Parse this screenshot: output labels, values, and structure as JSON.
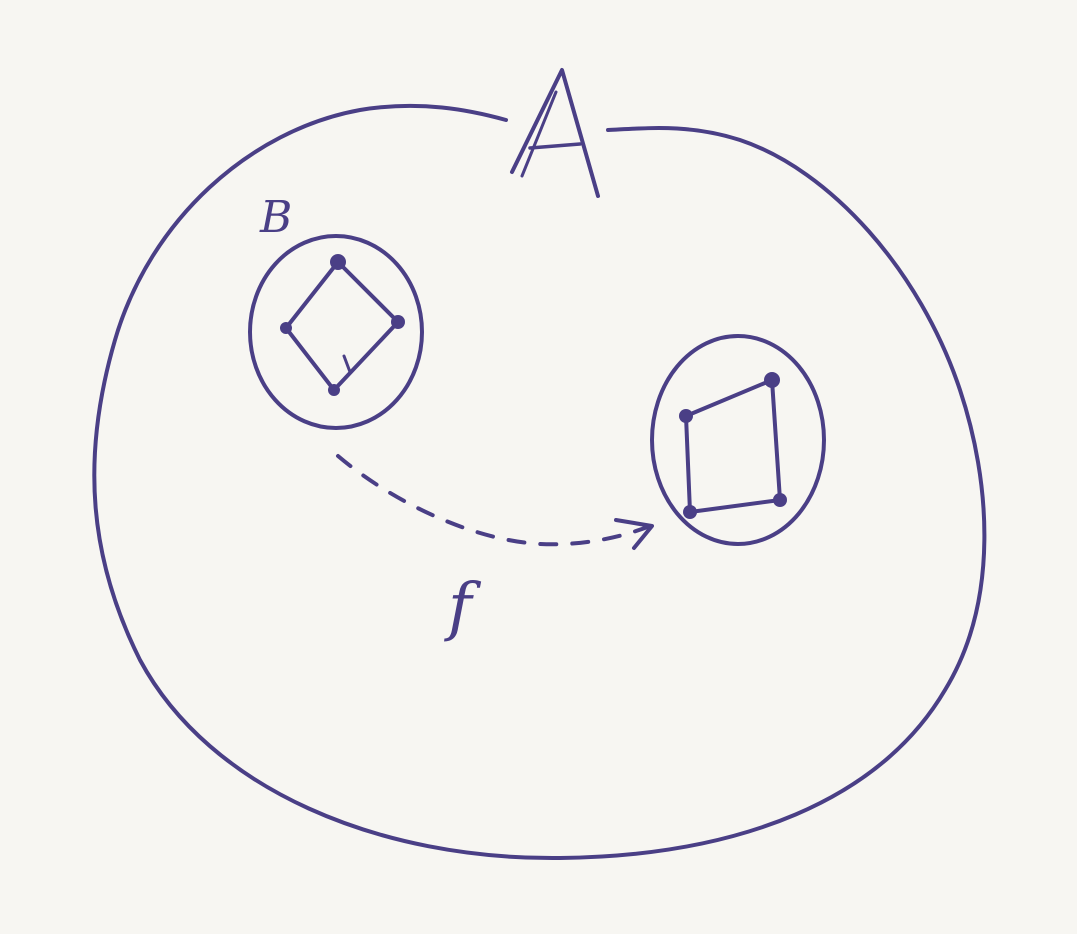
{
  "diagram": {
    "ink_color": "#4a3f86",
    "paper_color": "#f7f6f2",
    "outer_set": {
      "label": "A"
    },
    "subset": {
      "label": "B"
    },
    "mapping": {
      "label": "f",
      "style": "dashed-arrow"
    },
    "source_shape": {
      "vertices": 4
    },
    "image_shape": {
      "vertices": 4
    }
  }
}
